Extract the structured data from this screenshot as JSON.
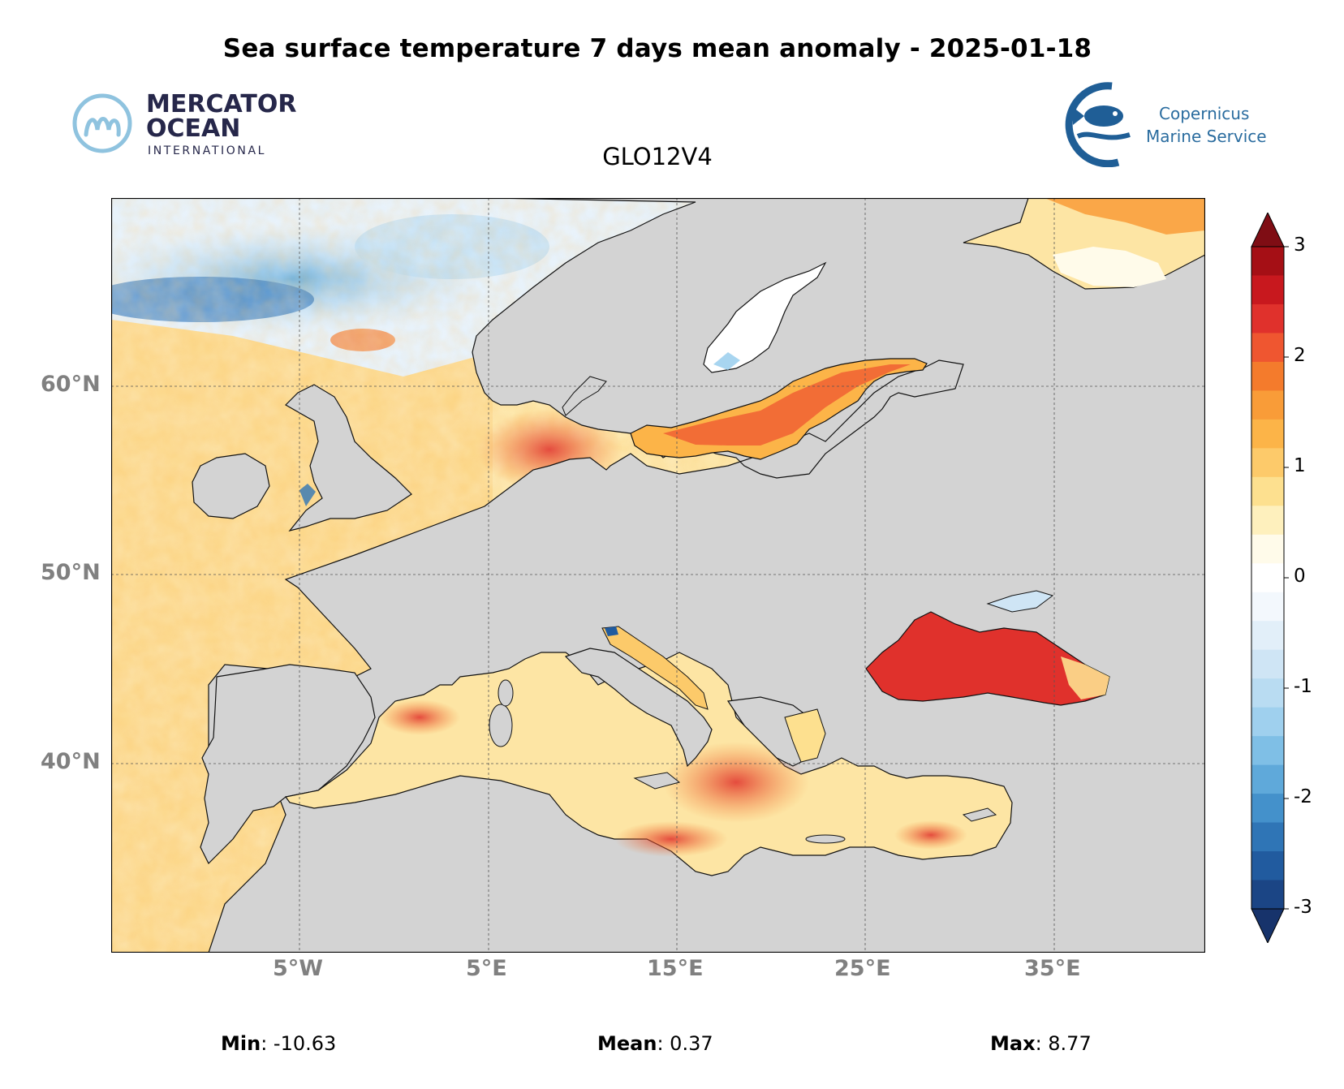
{
  "title": "Sea surface temperature 7 days mean anomaly - 2025-01-18",
  "subtitle": "GLO12V4",
  "logos": {
    "mercator": {
      "line1": "MERCATOR",
      "line2": "OCEAN",
      "line3": "INTERNATIONAL"
    },
    "copernicus": {
      "line1": "Copernicus",
      "line2": "Marine Service"
    }
  },
  "map": {
    "lat_labels": [
      "60°N",
      "50°N",
      "40°N"
    ],
    "lon_labels": [
      "5°W",
      "5°E",
      "15°E",
      "25°E",
      "35°E"
    ],
    "land_color": "#d3d3d3",
    "extent": {
      "lon": [
        -15,
        43
      ],
      "lat": [
        30,
        70
      ]
    }
  },
  "colorbar": {
    "ticks": [
      "3",
      "2",
      "1",
      "0",
      "-1",
      "-2",
      "-3"
    ],
    "range": [
      -3,
      3
    ],
    "colors": [
      "#7f0d14",
      "#a50f15",
      "#c8181e",
      "#e0312c",
      "#ef5630",
      "#f47b2c",
      "#f99c38",
      "#fcb448",
      "#fdca6a",
      "#fde08f",
      "#fef0bd",
      "#fffbea",
      "#ffffff",
      "#f3f8fd",
      "#e2eff9",
      "#cfe5f5",
      "#b9dcf2",
      "#9fd0ee",
      "#7fbfe6",
      "#5fa9da",
      "#4491cb",
      "#2f75b6",
      "#215b9f",
      "#1b4585",
      "#17336b"
    ]
  },
  "stats": {
    "min_label": "Min",
    "min_value": ": -10.63",
    "mean_label": "Mean",
    "mean_value": ": 0.37",
    "max_label": "Max",
    "max_value": ": 8.77"
  }
}
